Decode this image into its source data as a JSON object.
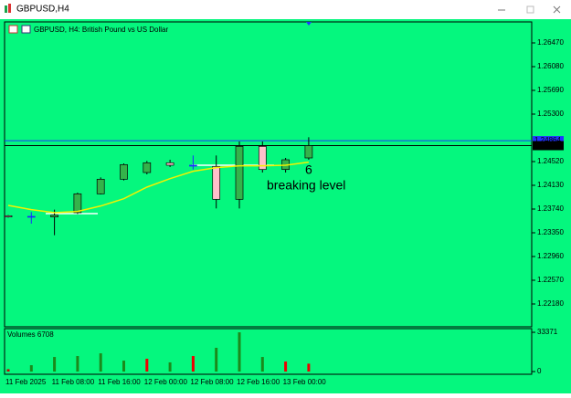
{
  "window": {
    "title": "GBPUSD,H4"
  },
  "chart_data": [
    {
      "type": "candlestick",
      "title": "GBPUSD, H4:  British Pound vs US Dollar",
      "background": "#05f77e",
      "up_color": "#34b34a",
      "down_color": "#ffc0cb",
      "doji_color": "#1a2cff",
      "categories": [
        "11 Feb 2025",
        null,
        "11 Feb 08:00",
        null,
        "11 Feb 16:00",
        null,
        "12 Feb 00:00",
        null,
        "12 Feb 08:00",
        null,
        "12 Feb 16:00",
        null,
        "13 Feb 00:00",
        null
      ],
      "open": [
        1.2363,
        1.2362,
        1.2361,
        1.2368,
        1.2399,
        1.2423,
        1.2434,
        1.245,
        1.2446,
        1.2444,
        1.239,
        1.2477,
        1.2439,
        1.2458
      ],
      "high": [
        1.2364,
        1.2369,
        1.2373,
        1.2401,
        1.2426,
        1.2449,
        1.2453,
        1.2455,
        1.2462,
        1.2462,
        1.2485,
        1.2485,
        1.2458,
        1.2492
      ],
      "low": [
        1.236,
        1.235,
        1.2331,
        1.2366,
        1.2398,
        1.2421,
        1.2431,
        1.2443,
        1.2439,
        1.2375,
        1.2375,
        1.2434,
        1.2434,
        1.2455
      ],
      "close": [
        1.2361,
        1.2362,
        1.2364,
        1.2399,
        1.2423,
        1.2447,
        1.245,
        1.2446,
        1.2446,
        1.239,
        1.2477,
        1.2439,
        1.2455,
        1.24782
      ],
      "overlay": {
        "color": "#f2f200",
        "values": [
          1.238,
          1.2373,
          1.2368,
          1.237,
          1.2379,
          1.2391,
          1.241,
          1.2424,
          1.2436,
          1.2442,
          1.2445,
          1.2445,
          1.2446,
          1.2451
        ]
      },
      "price_lines": [
        {
          "value": 1.24864,
          "color": "#2233ff"
        },
        {
          "value": 1.24782,
          "color": "#000000"
        }
      ],
      "annotations": [
        "6",
        "breaking level"
      ],
      "ylim": [
        1.2182,
        1.268
      ],
      "yticks": [
        {
          "value": 1.2647,
          "label": "1.26470"
        },
        {
          "value": 1.2608,
          "label": "1.26080"
        },
        {
          "value": 1.2569,
          "label": "1.25690"
        },
        {
          "value": 1.253,
          "label": "1.25300"
        },
        {
          "value": 1.2452,
          "label": "1.24520"
        },
        {
          "value": 1.2413,
          "label": "1.24130"
        },
        {
          "value": 1.2374,
          "label": "1.23740"
        },
        {
          "value": 1.2335,
          "label": "1.23350"
        },
        {
          "value": 1.2296,
          "label": "1.22960"
        },
        {
          "value": 1.2257,
          "label": "1.22570"
        },
        {
          "value": 1.2218,
          "label": "1.22180"
        }
      ]
    },
    {
      "type": "bar",
      "title": "Volumes 6708",
      "colors": [
        "#cc0000",
        "#1b8a1b",
        "#1b8a1b",
        "#1b8a1b",
        "#1b8a1b",
        "#1b8a1b",
        "#ee0000",
        "#1b8a1b",
        "#ee0000",
        "#1b8a1b",
        "#1b8a1b",
        "#1b8a1b",
        "#ee0000",
        "#ee0000"
      ],
      "values": [
        2000,
        5400,
        12400,
        13200,
        15500,
        9300,
        10900,
        7800,
        13200,
        20200,
        33371,
        12400,
        8500,
        6708
      ],
      "ylim": [
        -2300,
        36500
      ],
      "yticks": [
        33371,
        0
      ]
    }
  ]
}
